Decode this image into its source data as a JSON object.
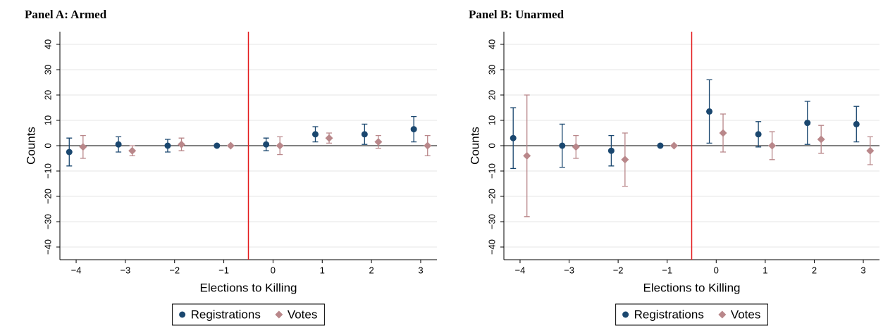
{
  "chart_data": [
    {
      "type": "scatter",
      "title": "Panel A: Armed",
      "xlabel": "Elections to Killing",
      "ylabel": "Counts",
      "x": [
        -4,
        -3,
        -2,
        -1,
        0,
        1,
        2,
        3
      ],
      "xlim": [
        -4.33,
        3.33
      ],
      "xticks": [
        {
          "value": -4,
          "label": "−4"
        },
        {
          "value": -3,
          "label": "−3"
        },
        {
          "value": -2,
          "label": "−2"
        },
        {
          "value": -1,
          "label": "−1"
        },
        0,
        1,
        2,
        3
      ],
      "ylim": [
        -45,
        45
      ],
      "yticks": [
        {
          "value": -40,
          "label": "−40"
        },
        {
          "value": -30,
          "label": "−30"
        },
        {
          "value": -20,
          "label": "−20"
        },
        {
          "value": -10,
          "label": "−10"
        },
        0,
        10,
        20,
        30,
        40
      ],
      "grid": true,
      "legend": "bottom",
      "vline": -0.5,
      "vline_color": "#e31a1c",
      "series": [
        {
          "name": "Registrations",
          "color": "#1a476f",
          "marker": "circle",
          "offset": -0.14,
          "values": [
            -2.5,
            0.5,
            0,
            0,
            0.5,
            4.5,
            4.5,
            6.5
          ],
          "errors": [
            5.5,
            3,
            2.5,
            0,
            2.5,
            3,
            4,
            5
          ]
        },
        {
          "name": "Votes",
          "color": "#b9878a",
          "marker": "diamond",
          "offset": 0.14,
          "values": [
            -0.5,
            -2,
            0.5,
            0,
            0,
            3,
            1.5,
            0
          ],
          "errors": [
            4.5,
            2,
            2.5,
            0,
            3.5,
            2,
            2.5,
            4
          ]
        }
      ]
    },
    {
      "type": "scatter",
      "title": "Panel B: Unarmed",
      "xlabel": "Elections to Killing",
      "ylabel": "Counts",
      "x": [
        -4,
        -3,
        -2,
        -1,
        0,
        1,
        2,
        3
      ],
      "xlim": [
        -4.33,
        3.33
      ],
      "xticks": [
        {
          "value": -4,
          "label": "−4"
        },
        {
          "value": -3,
          "label": "−3"
        },
        {
          "value": -2,
          "label": "−2"
        },
        {
          "value": -1,
          "label": "−1"
        },
        0,
        1,
        2,
        3
      ],
      "ylim": [
        -45,
        45
      ],
      "yticks": [
        {
          "value": -40,
          "label": "−40"
        },
        {
          "value": -30,
          "label": "−30"
        },
        {
          "value": -20,
          "label": "−20"
        },
        {
          "value": -10,
          "label": "−10"
        },
        0,
        10,
        20,
        30,
        40
      ],
      "grid": true,
      "legend": "bottom",
      "vline": -0.5,
      "vline_color": "#e31a1c",
      "series": [
        {
          "name": "Registrations",
          "color": "#1a476f",
          "marker": "circle",
          "offset": -0.14,
          "values": [
            3,
            0,
            -2,
            0,
            13.5,
            4.5,
            9,
            8.5
          ],
          "errors": [
            12,
            8.5,
            6,
            0,
            12.5,
            5,
            8.5,
            7
          ]
        },
        {
          "name": "Votes",
          "color": "#b9878a",
          "marker": "diamond",
          "offset": 0.14,
          "values": [
            -4,
            -0.5,
            -5.5,
            0,
            5,
            0,
            2.5,
            -2
          ],
          "errors": [
            24,
            4.5,
            10.5,
            0,
            7.5,
            5.5,
            5.5,
            5.5
          ]
        }
      ]
    }
  ]
}
